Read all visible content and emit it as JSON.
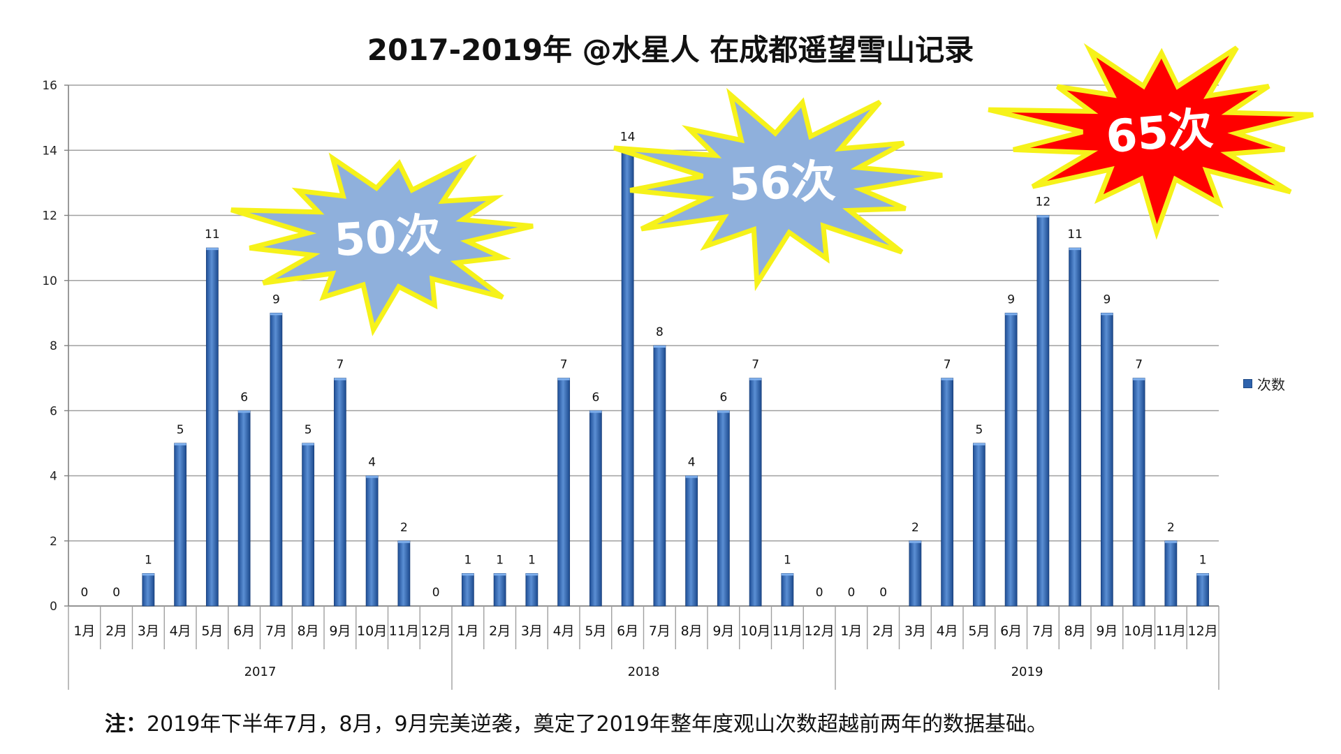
{
  "chart_data": {
    "type": "bar",
    "title": "2017-2019年 @水星人 在成都遥望雪山记录",
    "xlabel": "",
    "ylabel": "",
    "ylim": [
      0,
      16
    ],
    "yticks": [
      0,
      2,
      4,
      6,
      8,
      10,
      12,
      14,
      16
    ],
    "grid": true,
    "legend_position": "right",
    "groups": [
      {
        "label": "2017",
        "months": [
          "1月",
          "2月",
          "3月",
          "4月",
          "5月",
          "6月",
          "7月",
          "8月",
          "9月",
          "10月",
          "11月",
          "12月"
        ],
        "values": [
          0,
          0,
          1,
          5,
          11,
          6,
          9,
          5,
          7,
          4,
          2,
          0
        ]
      },
      {
        "label": "2018",
        "months": [
          "1月",
          "2月",
          "3月",
          "4月",
          "5月",
          "6月",
          "7月",
          "8月",
          "9月",
          "10月",
          "11月",
          "12月"
        ],
        "values": [
          1,
          1,
          1,
          7,
          6,
          14,
          8,
          4,
          6,
          7,
          1,
          0
        ]
      },
      {
        "label": "2019",
        "months": [
          "1月",
          "2月",
          "3月",
          "4月",
          "5月",
          "6月",
          "7月",
          "8月",
          "9月",
          "10月",
          "11月",
          "12月"
        ],
        "values": [
          0,
          0,
          2,
          7,
          5,
          9,
          12,
          11,
          9,
          7,
          2,
          1
        ]
      }
    ],
    "series": [
      {
        "name": "次数"
      }
    ],
    "bar_color": "#2e63ad",
    "annotations": [
      {
        "text": "50次",
        "year": "2017",
        "fill": "#8fb0dc",
        "text_color": "#ffffff"
      },
      {
        "text": "56次",
        "year": "2018",
        "fill": "#8fb0dc",
        "text_color": "#ffffff"
      },
      {
        "text": "65次",
        "year": "2019",
        "fill": "#ff0000",
        "text_color": "#ffffff"
      }
    ]
  },
  "note": {
    "prefix": "注：",
    "text": "2019年下半年7月，8月，9月完美逆袭，奠定了2019年整年度观山次数超越前两年的数据基础。"
  }
}
